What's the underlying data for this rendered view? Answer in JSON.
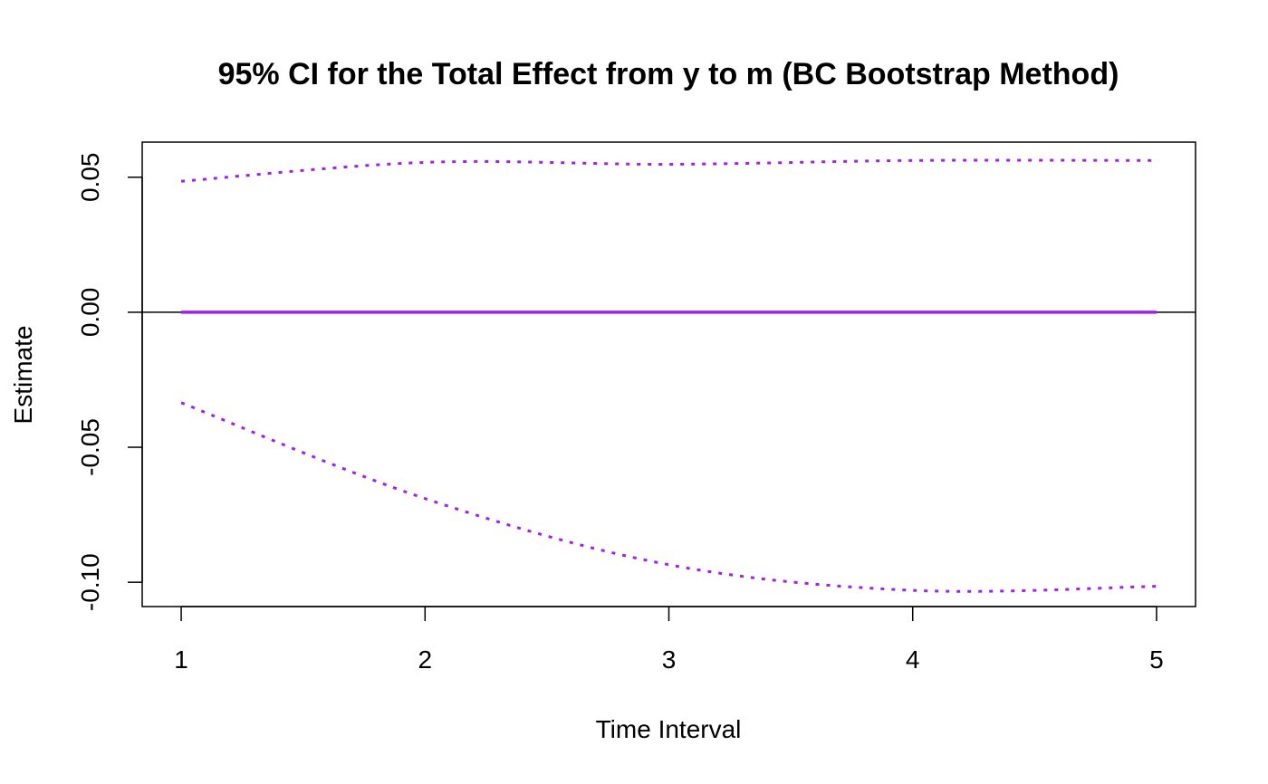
{
  "chart_data": {
    "type": "line",
    "title": "95% CI for the Total Effect from y to m (BC Bootstrap Method)",
    "xlabel": "Time Interval",
    "ylabel": "Estimate",
    "x": [
      1,
      2,
      3,
      4,
      5
    ],
    "x_ticks": [
      "1",
      "2",
      "3",
      "4",
      "5"
    ],
    "y_ticks": [
      "-0.10",
      "-0.05",
      "0.00",
      "0.05"
    ],
    "xlim": [
      0.84,
      5.16
    ],
    "ylim": [
      -0.109,
      0.063
    ],
    "grid": false,
    "reference_line_y": 0,
    "series": [
      {
        "role": "estimate",
        "style": "solid",
        "color": "#a020f0",
        "values": [
          0,
          0,
          0,
          0,
          0
        ]
      },
      {
        "role": "upper",
        "style": "dotted",
        "color": "#a020f0",
        "values": [
          0.0485,
          0.0555,
          0.0548,
          0.0562,
          0.0562
        ]
      },
      {
        "role": "lower",
        "style": "dotted",
        "color": "#a020f0",
        "values": [
          -0.0335,
          -0.069,
          -0.0935,
          -0.103,
          -0.1015
        ]
      }
    ]
  }
}
